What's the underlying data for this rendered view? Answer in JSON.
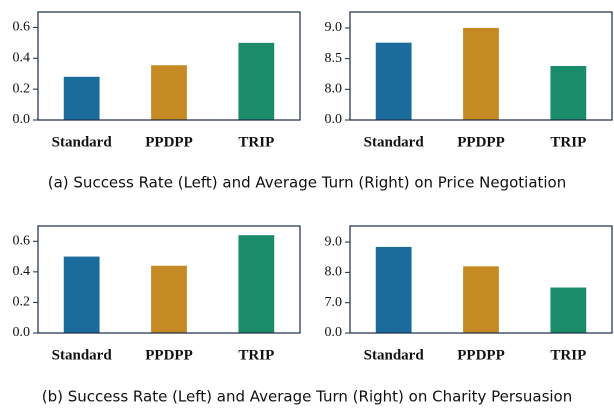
{
  "chart_data": [
    {
      "type": "bar",
      "categories": [
        "Standard",
        "PPDPP",
        "TRIP"
      ],
      "values": [
        0.28,
        0.355,
        0.5
      ],
      "colors": [
        "#1b6c9c",
        "#c68a25",
        "#1b8c6a"
      ],
      "ylim": [
        0,
        0.7
      ],
      "yticks": [
        {
          "value": 0,
          "label": "0.0"
        },
        {
          "value": 0.2,
          "label": "0.2"
        },
        {
          "value": 0.4,
          "label": "0.4"
        },
        {
          "value": 0.6,
          "label": "0.6"
        }
      ]
    },
    {
      "type": "bar",
      "categories": [
        "Standard",
        "PPDPP",
        "TRIP"
      ],
      "values": [
        8.76,
        9.0,
        8.38
      ],
      "colors": [
        "#1b6c9c",
        "#c68a25",
        "#1b8c6a"
      ],
      "ylim": [
        0,
        9.26
      ],
      "ybreak": [
        0,
        7.5
      ],
      "yticks": [
        {
          "value": 0,
          "label": "0.0"
        },
        {
          "value": 8,
          "label": "8.0"
        },
        {
          "value": 8.5,
          "label": "8.5"
        },
        {
          "value": 9,
          "label": "9.0"
        }
      ]
    },
    {
      "type": "bar",
      "categories": [
        "Standard",
        "PPDPP",
        "TRIP"
      ],
      "values": [
        0.5,
        0.44,
        0.64
      ],
      "colors": [
        "#1b6c9c",
        "#c68a25",
        "#1b8c6a"
      ],
      "ylim": [
        0,
        0.7
      ],
      "yticks": [
        {
          "value": 0,
          "label": "0.0"
        },
        {
          "value": 0.2,
          "label": "0.2"
        },
        {
          "value": 0.4,
          "label": "0.4"
        },
        {
          "value": 0.6,
          "label": "0.6"
        }
      ]
    },
    {
      "type": "bar",
      "categories": [
        "Standard",
        "PPDPP",
        "TRIP"
      ],
      "values": [
        8.84,
        8.2,
        7.5
      ],
      "colors": [
        "#1b6c9c",
        "#c68a25",
        "#1b8c6a"
      ],
      "ylim": [
        0,
        9.53
      ],
      "ybreak": [
        0,
        6
      ],
      "yticks": [
        {
          "value": 0,
          "label": "0.0"
        },
        {
          "value": 7,
          "label": "7.0"
        },
        {
          "value": 8,
          "label": "8.0"
        },
        {
          "value": 9,
          "label": "9.0"
        }
      ]
    }
  ],
  "captions": [
    "(a) Success Rate (Left) and Average Turn (Right) on Price Negotiation",
    "(b) Success Rate (Left) and Average Turn (Right) on Charity Persuasion"
  ]
}
